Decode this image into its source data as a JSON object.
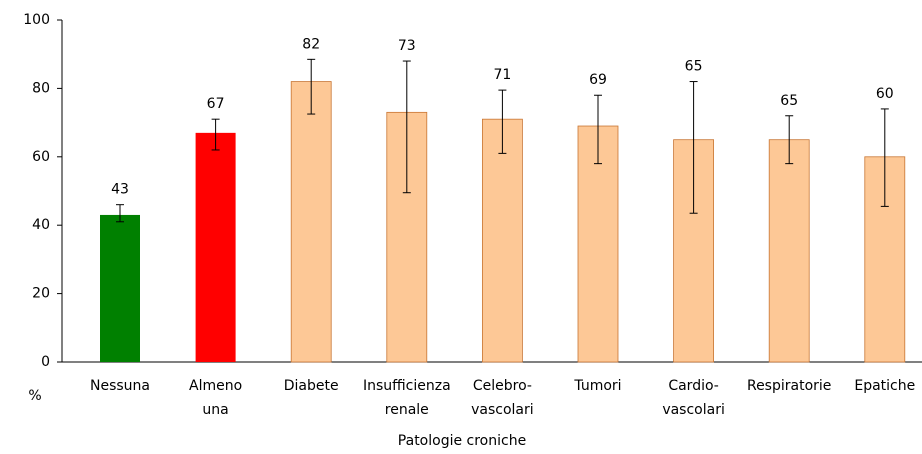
{
  "chart_data": {
    "type": "bar",
    "categories": [
      [
        "Nessuna"
      ],
      [
        "Almeno",
        "una"
      ],
      [
        "Diabete"
      ],
      [
        "Insufficienza",
        "renale"
      ],
      [
        "Celebro-",
        "vascolari"
      ],
      [
        "Tumori"
      ],
      [
        "Cardio-",
        "vascolari"
      ],
      [
        "Respiratorie"
      ],
      [
        "Epatiche"
      ]
    ],
    "values": [
      43,
      67,
      82,
      73,
      71,
      69,
      65,
      65,
      60
    ],
    "ci_low": [
      41,
      62,
      72.5,
      49.5,
      61,
      58,
      43.5,
      58,
      45.5
    ],
    "ci_high": [
      46,
      71,
      88.5,
      88,
      79.5,
      78,
      82,
      72,
      74
    ],
    "colors": [
      "#008000",
      "#ff0000",
      "#fdc896",
      "#fdc896",
      "#fdc896",
      "#fdc896",
      "#fdc896",
      "#fdc896",
      "#fdc896"
    ],
    "bar_edge": "#c87533",
    "ylim": [
      0,
      100
    ],
    "yticks": [
      0,
      20,
      40,
      60,
      80,
      100
    ],
    "ylabel": "%",
    "xlabel": "Patologie croniche",
    "grid": false
  }
}
